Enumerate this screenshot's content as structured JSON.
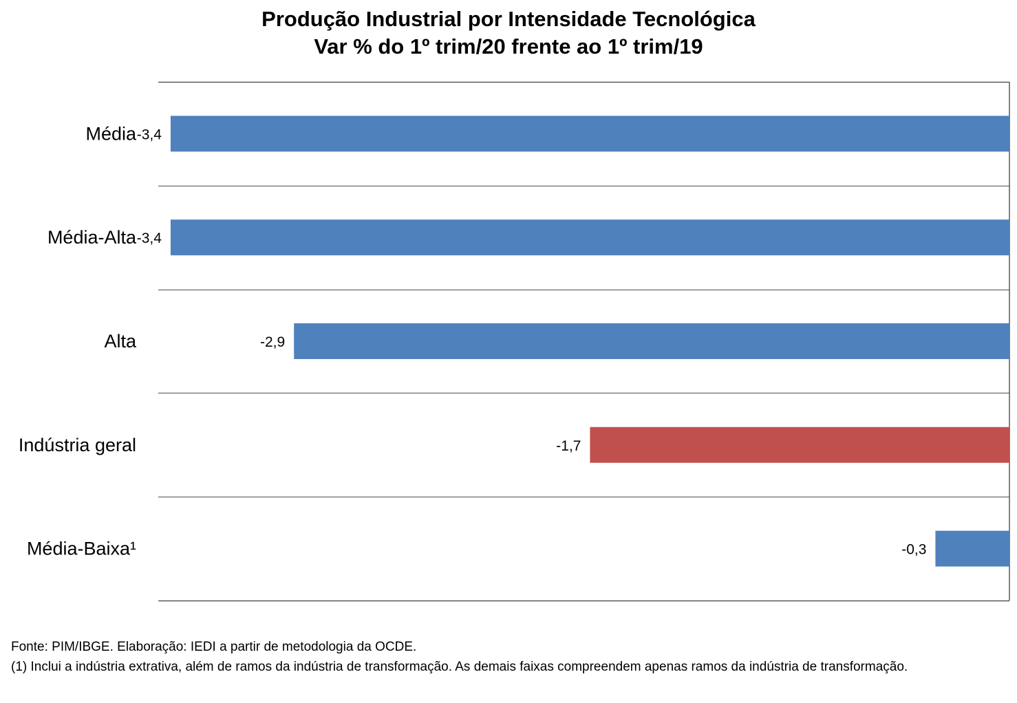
{
  "chart_data": {
    "type": "bar",
    "orientation": "horizontal",
    "title": "Produção Industrial por Intensidade Tecnológica",
    "subtitle": "Var % do 1º trim/20 frente ao 1º trim/19",
    "categories": [
      "Média",
      "Média-Alta",
      "Alta",
      "Indústria geral",
      "Média-Baixa¹"
    ],
    "values": [
      -3.4,
      -3.4,
      -2.9,
      -1.7,
      -0.3
    ],
    "value_labels": [
      "-3,4",
      "-3,4",
      "-2,9",
      "-1,7",
      "-0,3"
    ],
    "colors": [
      "#4F81BD",
      "#4F81BD",
      "#4F81BD",
      "#C0504D",
      "#4F81BD"
    ],
    "xlim": [
      -3.45,
      0
    ],
    "grid": "horizontal category separators",
    "legend": "none"
  },
  "footer": {
    "source": "Fonte: PIM/IBGE. Elaboração: IEDI a partir de metodologia da OCDE.",
    "note": "(1) Inclui a indústria extrativa, além de ramos da indústria de transformação. As demais faixas compreendem apenas ramos da indústria de transformação."
  }
}
